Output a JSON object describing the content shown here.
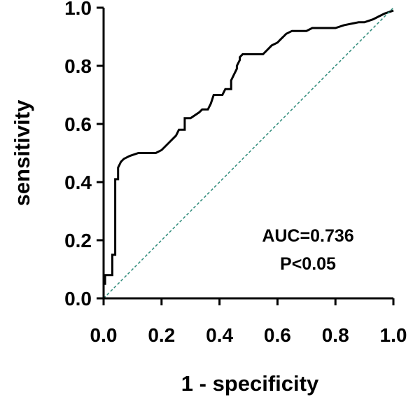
{
  "chart_data": {
    "type": "line",
    "xlabel": "1 - specificity",
    "ylabel": "sensitivity",
    "xlim": [
      0,
      1
    ],
    "ylim": [
      0,
      1
    ],
    "xticks": [
      "0.0",
      "0.2",
      "0.4",
      "0.6",
      "0.8",
      "1.0"
    ],
    "yticks": [
      "0.0",
      "0.2",
      "0.4",
      "0.6",
      "0.8",
      "1.0"
    ],
    "annotations": {
      "auc": "AUC=0.736",
      "p_value": "P<0.05"
    },
    "colors": {
      "roc_line": "#000000",
      "reference_line": "#2e8b7a"
    },
    "series": [
      {
        "style": "solid",
        "x": [
          0.0,
          0.0,
          0.005,
          0.005,
          0.01,
          0.01,
          0.03,
          0.03,
          0.04,
          0.04,
          0.05,
          0.05,
          0.06,
          0.07,
          0.09,
          0.12,
          0.15,
          0.18,
          0.2,
          0.22,
          0.24,
          0.25,
          0.26,
          0.28,
          0.28,
          0.3,
          0.33,
          0.34,
          0.36,
          0.37,
          0.38,
          0.4,
          0.41,
          0.42,
          0.44,
          0.44,
          0.45,
          0.46,
          0.46,
          0.47,
          0.47,
          0.48,
          0.49,
          0.5,
          0.53,
          0.55,
          0.56,
          0.58,
          0.6,
          0.61,
          0.62,
          0.63,
          0.65,
          0.68,
          0.7,
          0.72,
          0.8,
          0.83,
          0.88,
          0.9,
          0.93,
          0.95,
          0.97,
          1.0
        ],
        "y": [
          0.0,
          0.05,
          0.05,
          0.08,
          0.08,
          0.08,
          0.08,
          0.15,
          0.15,
          0.41,
          0.41,
          0.45,
          0.47,
          0.48,
          0.49,
          0.5,
          0.5,
          0.5,
          0.51,
          0.53,
          0.55,
          0.56,
          0.58,
          0.58,
          0.62,
          0.62,
          0.64,
          0.65,
          0.65,
          0.67,
          0.7,
          0.7,
          0.7,
          0.72,
          0.72,
          0.75,
          0.77,
          0.79,
          0.8,
          0.82,
          0.83,
          0.84,
          0.84,
          0.84,
          0.84,
          0.84,
          0.85,
          0.87,
          0.88,
          0.89,
          0.9,
          0.91,
          0.92,
          0.92,
          0.92,
          0.93,
          0.93,
          0.94,
          0.95,
          0.95,
          0.96,
          0.97,
          0.98,
          0.99
        ]
      },
      {
        "style": "dashed",
        "x": [
          0,
          1
        ],
        "y": [
          0,
          1
        ]
      }
    ]
  }
}
